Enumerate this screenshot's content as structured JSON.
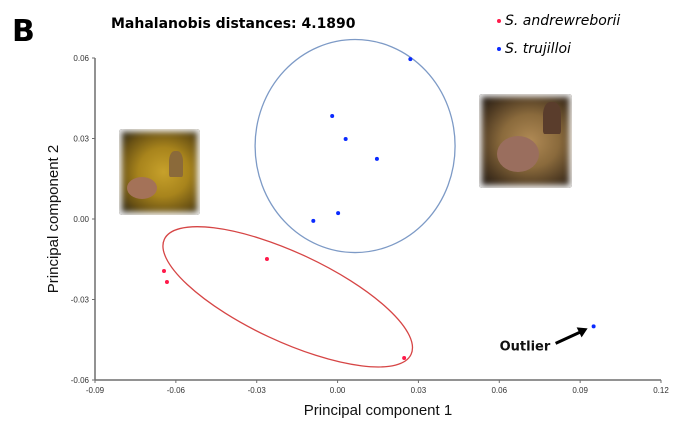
{
  "panel_label": "B",
  "photos": [
    {
      "name": "bat-photo-s-andrewreborii",
      "alt": "S. andrewreborii bat photo"
    },
    {
      "name": "bat-photo-s-trujilloi",
      "alt": "S. trujilloi bat photo"
    }
  ],
  "chart_data": {
    "type": "scatter",
    "title": "Mahalanobis distances: 4.1890",
    "xlabel": "Principal component 1",
    "ylabel": "Principal component 2",
    "xlim": [
      -0.09,
      0.12
    ],
    "ylim": [
      -0.06,
      0.06
    ],
    "xticks": [
      "-0.09",
      "-0.06",
      "-0.03",
      "0.00",
      "0.03",
      "0.06",
      "0.09",
      "0.12"
    ],
    "yticks": [
      "-0.06",
      "-0.03",
      "0.00",
      "0.03",
      "0.06"
    ],
    "xtick_values": [
      -0.09,
      -0.06,
      -0.03,
      0.0,
      0.03,
      0.06,
      0.09,
      0.12
    ],
    "ytick_values": [
      -0.06,
      -0.03,
      0.0,
      0.03,
      0.06
    ],
    "grid": false,
    "legend_position": "top-right",
    "series": [
      {
        "name": "S. andrewreborii",
        "color": "#ff1a4a",
        "ellipse_color": "#d64545",
        "points": [
          {
            "x": -0.0644,
            "y": -0.0194
          },
          {
            "x": -0.0633,
            "y": -0.0235
          },
          {
            "x": -0.0262,
            "y": -0.0149
          },
          {
            "x": 0.0247,
            "y": -0.0518
          }
        ],
        "ellipse": {
          "cx": -0.0185,
          "cy": -0.029,
          "rx_data": 0.0505,
          "ry_data": 0.0165,
          "angle_deg": 25
        }
      },
      {
        "name": "S. trujilloi",
        "color": "#0a2aff",
        "ellipse_color": "#7d9ac6",
        "points": [
          {
            "x": 0.027,
            "y": 0.0596
          },
          {
            "x": -0.002,
            "y": 0.0384
          },
          {
            "x": 0.003,
            "y": 0.0298
          },
          {
            "x": 0.0146,
            "y": 0.0224
          },
          {
            "x": 0.0002,
            "y": 0.0022
          },
          {
            "x": -0.009,
            "y": -0.0007
          },
          {
            "x": 0.095,
            "y": -0.04
          }
        ],
        "ellipse": {
          "cx": 0.0065,
          "cy": 0.0272,
          "rx_data": 0.0371,
          "ry_data": 0.0397,
          "angle_deg": 0
        }
      }
    ],
    "annotations": [
      {
        "text": "Outlier",
        "target": {
          "x": 0.095,
          "y": -0.04
        }
      }
    ]
  }
}
